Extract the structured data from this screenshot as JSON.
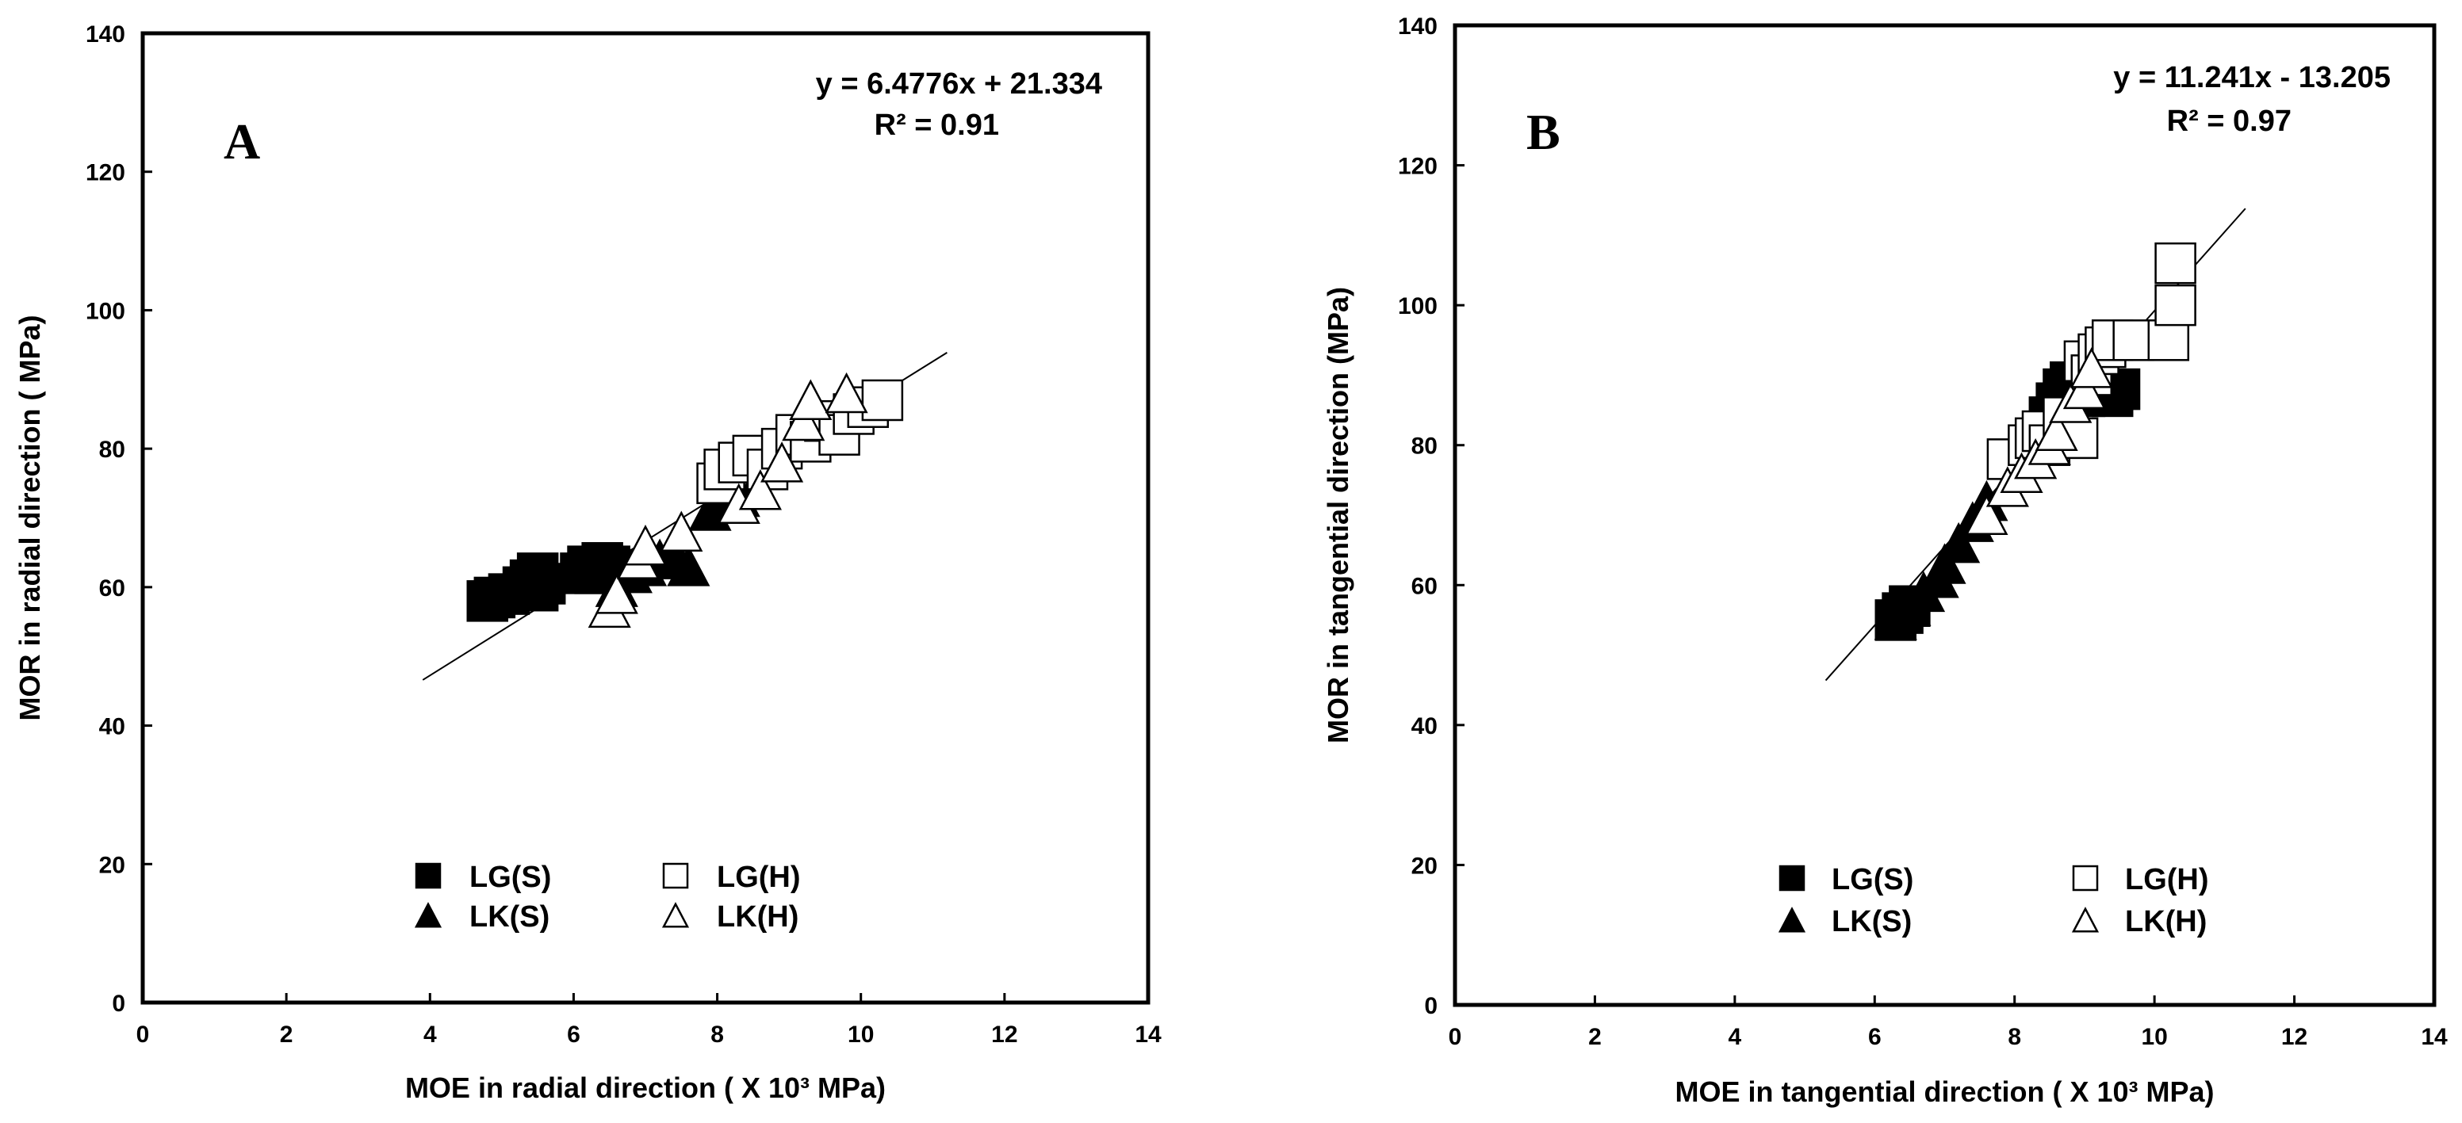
{
  "chart_data": [
    {
      "type": "scatter",
      "panel_label": "A",
      "xlabel": "MOE in radial direction ( X 10³ MPa)",
      "ylabel": "MOR in radial direction ( MPa)",
      "xlim": [
        0,
        14
      ],
      "ylim": [
        0,
        140
      ],
      "xticks": [
        "0",
        "2",
        "4",
        "6",
        "8",
        "10",
        "12",
        "14"
      ],
      "yticks": [
        "0",
        "20",
        "40",
        "60",
        "80",
        "100",
        "120",
        "140"
      ],
      "equation": "y = 6.4776x + 21.334",
      "r_squared": "R² = 0.91",
      "trendline": {
        "slope": 6.4776,
        "intercept": 21.334,
        "x_range": [
          3.9,
          11.2
        ]
      },
      "legend": [
        {
          "label": "LG(S)",
          "marker": "filled-square"
        },
        {
          "label": "LG(H)",
          "marker": "open-square"
        },
        {
          "label": "LK(S)",
          "marker": "filled-triangle"
        },
        {
          "label": "LK(H)",
          "marker": "open-triangle"
        }
      ],
      "series": [
        {
          "name": "LG(S)",
          "marker": "filled-square",
          "x": [
            4.8,
            4.9,
            5.1,
            5.3,
            5.4,
            5.5,
            5.5,
            5.6,
            6.1,
            6.2,
            6.3,
            6.4,
            6.5,
            6.6
          ],
          "y": [
            58,
            58.5,
            59,
            60,
            61,
            62,
            59.5,
            60.5,
            62,
            63,
            62,
            63.5,
            63,
            62.5
          ]
        },
        {
          "name": "LG(H)",
          "marker": "open-square",
          "x": [
            8.0,
            8.1,
            8.3,
            8.5,
            8.7,
            8.9,
            9.1,
            9.3,
            9.5,
            9.7,
            9.9,
            10.1,
            10.3
          ],
          "y": [
            75,
            77,
            78,
            79,
            77,
            80,
            82,
            81,
            84,
            82,
            85,
            86,
            87
          ]
        },
        {
          "name": "LK(S)",
          "marker": "filled-triangle",
          "x": [
            6.6,
            6.8,
            7.0,
            7.2,
            7.4,
            7.6,
            7.9,
            8.1,
            8.3,
            8.5
          ],
          "y": [
            60,
            62,
            63,
            64,
            65,
            63,
            71,
            72,
            73,
            74
          ]
        },
        {
          "name": "LK(H)",
          "marker": "open-triangle",
          "x": [
            6.5,
            6.6,
            6.9,
            7.0,
            7.5,
            8.3,
            8.6,
            8.9,
            9.2,
            9.3,
            9.8
          ],
          "y": [
            57,
            59,
            64,
            66,
            68,
            72,
            74,
            78,
            84,
            87,
            88
          ]
        }
      ]
    },
    {
      "type": "scatter",
      "panel_label": "B",
      "xlabel": "MOE in tangential direction ( X 10³ MPa)",
      "ylabel": "MOR in tangential direction (MPa)",
      "xlim": [
        0,
        14
      ],
      "ylim": [
        0,
        140
      ],
      "xticks": [
        "0",
        "2",
        "4",
        "6",
        "8",
        "10",
        "12",
        "14"
      ],
      "yticks": [
        "0",
        "20",
        "40",
        "60",
        "80",
        "100",
        "120",
        "140"
      ],
      "equation": "y = 11.241x - 13.205",
      "r_squared": "R² = 0.97",
      "trendline": {
        "slope": 11.241,
        "intercept": -13.205,
        "x_range": [
          5.3,
          11.3
        ]
      },
      "legend": [
        {
          "label": "LG(S)",
          "marker": "filled-square"
        },
        {
          "label": "LG(H)",
          "marker": "open-square"
        },
        {
          "label": "LK(S)",
          "marker": "filled-triangle"
        },
        {
          "label": "LK(H)",
          "marker": "open-triangle"
        }
      ],
      "series": [
        {
          "name": "LG(S)",
          "marker": "filled-square",
          "x": [
            6.3,
            6.4,
            6.5,
            8.5,
            8.6,
            8.7,
            8.8,
            9.0,
            9.2,
            9.4,
            9.5
          ],
          "y": [
            55,
            56,
            57,
            84,
            86,
            88,
            89,
            87,
            88,
            87,
            88
          ]
        },
        {
          "name": "LG(H)",
          "marker": "open-square",
          "x": [
            7.9,
            8.2,
            8.3,
            8.4,
            8.5,
            8.7,
            8.9,
            9.0,
            9.1,
            9.2,
            9.3,
            9.4,
            9.7,
            10.2,
            10.3,
            10.3
          ],
          "y": [
            78,
            80,
            81,
            82,
            80,
            84,
            81,
            92,
            90,
            93,
            94,
            95,
            95,
            95,
            100,
            106
          ]
        },
        {
          "name": "LK(S)",
          "marker": "filled-triangle",
          "x": [
            6.3,
            6.5,
            6.7,
            6.9,
            7.0,
            7.2,
            7.4,
            7.6
          ],
          "y": [
            55,
            57,
            59,
            61,
            63,
            66,
            69,
            72
          ]
        },
        {
          "name": "LK(H)",
          "marker": "open-triangle",
          "x": [
            7.6,
            7.9,
            8.1,
            8.3,
            8.5,
            8.6,
            8.8,
            9.0,
            9.1
          ],
          "y": [
            70,
            74,
            76,
            78,
            80,
            82,
            86,
            88,
            91
          ]
        }
      ]
    }
  ]
}
